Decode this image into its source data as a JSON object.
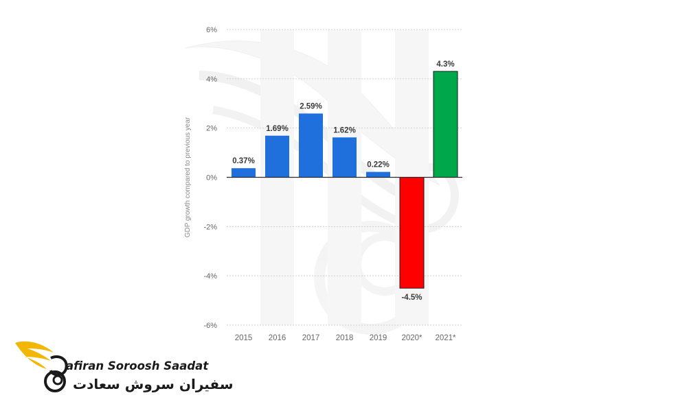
{
  "chart_data": {
    "type": "bar",
    "categories": [
      "2015",
      "2016",
      "2017",
      "2018",
      "2019",
      "2020*",
      "2021*"
    ],
    "values": [
      0.37,
      1.69,
      2.59,
      1.62,
      0.22,
      -4.5,
      4.3
    ],
    "data_labels": [
      "0.37%",
      "1.69%",
      "2.59%",
      "1.62%",
      "0.22%",
      "-4.5%",
      "4.3%"
    ],
    "title": "",
    "xlabel": "",
    "ylabel": "GDP growth compared to previous year",
    "ylim": [
      -6,
      6
    ],
    "yticks": [
      6,
      4,
      2,
      0,
      -2,
      -4,
      -6
    ],
    "ytick_labels": [
      "6%",
      "4%",
      "2%",
      "0%",
      "-2%",
      "-4%",
      "-6%"
    ],
    "grid": true,
    "bar_colors": [
      "#1f6fdc",
      "#1f6fdc",
      "#1f6fdc",
      "#1f6fdc",
      "#1f6fdc",
      "#ff0000",
      "#00a84c"
    ],
    "legend": "none"
  },
  "logo": {
    "name_latin": "afiran Soroosh Saadat",
    "name_persian": "سفیران سروش سعادت",
    "accent_color": "#f2b705"
  }
}
